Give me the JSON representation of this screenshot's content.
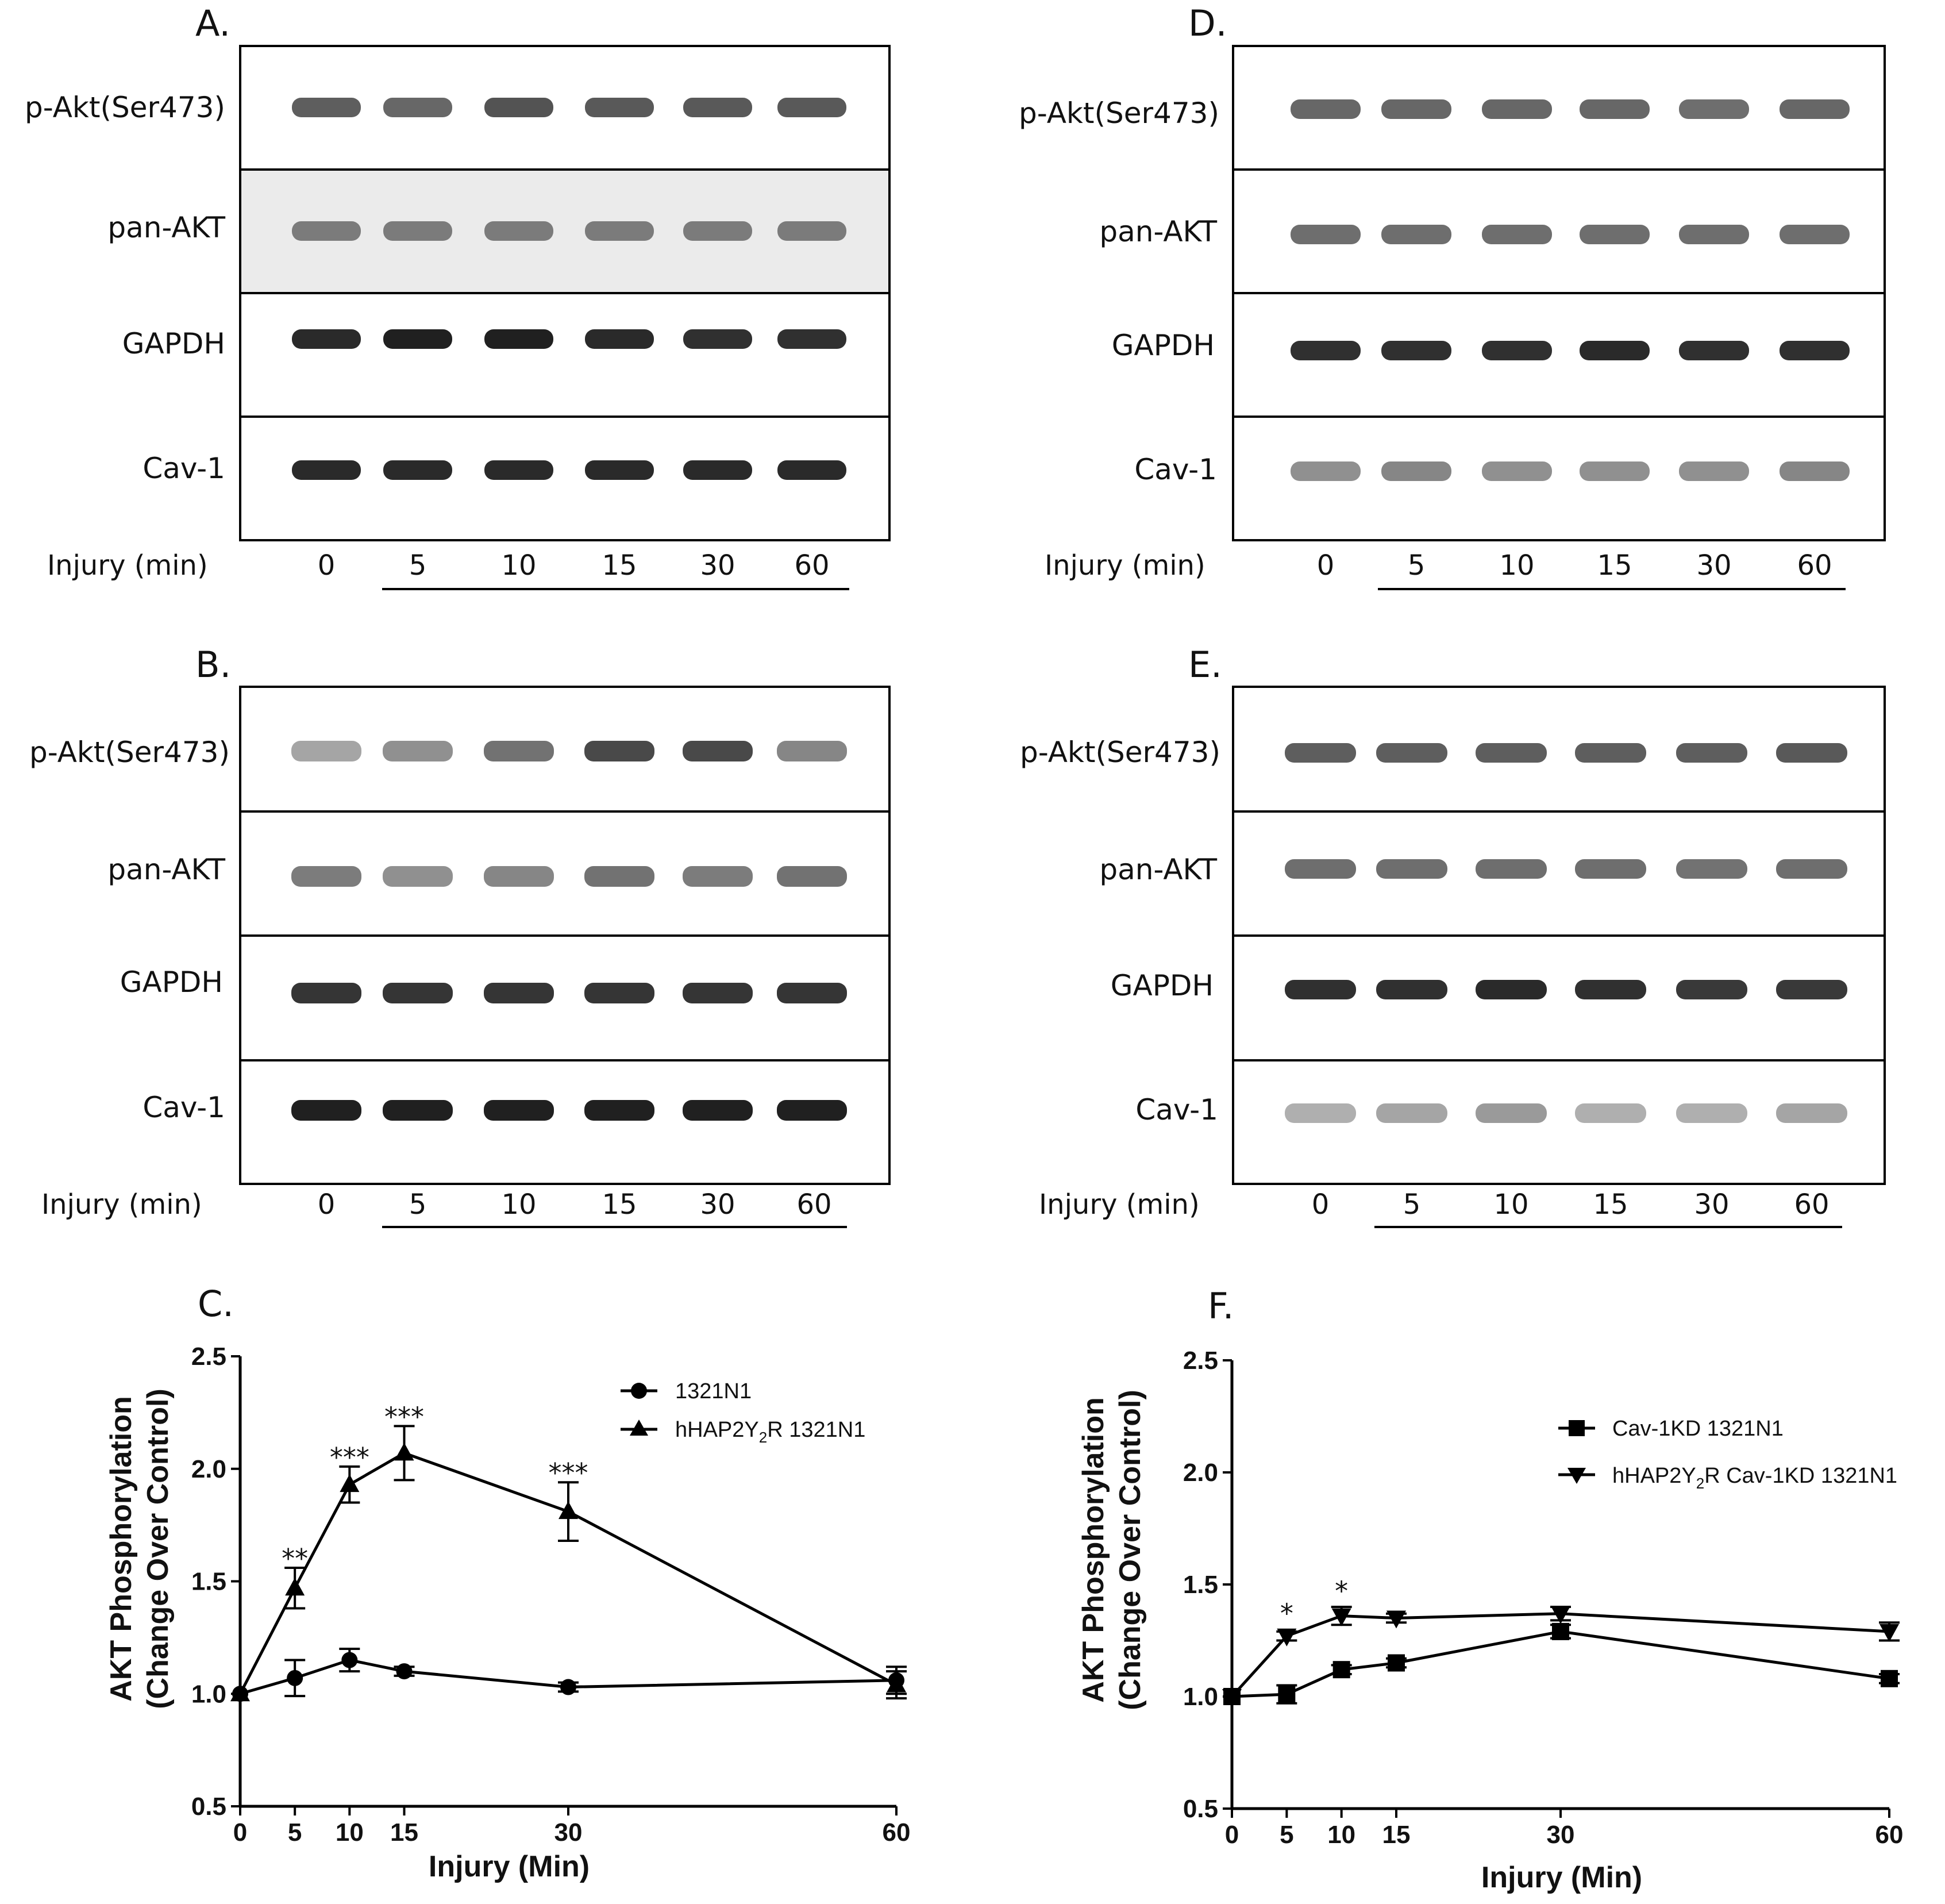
{
  "blots": [
    {
      "letter": "A.",
      "rows": [
        {
          "label": "p-Akt(Ser473)",
          "intensity": [
            0.7,
            0.65,
            0.75,
            0.72,
            0.72,
            0.72
          ]
        },
        {
          "label": "pan-AKT",
          "intensity": [
            0.55,
            0.55,
            0.55,
            0.55,
            0.55,
            0.55
          ]
        },
        {
          "label": "GAPDH",
          "intensity": [
            0.95,
            1.0,
            1.0,
            0.95,
            0.92,
            0.92
          ]
        },
        {
          "label": "Cav-1",
          "intensity": [
            0.95,
            0.95,
            0.95,
            0.95,
            0.95,
            0.95
          ]
        }
      ],
      "injury_label": "Injury (min)",
      "lanes": [
        "0",
        "5",
        "10",
        "15",
        "30",
        "60"
      ]
    },
    {
      "letter": "B.",
      "rows": [
        {
          "label": "p-Akt(Ser473)",
          "intensity": [
            0.35,
            0.45,
            0.6,
            0.8,
            0.8,
            0.5
          ]
        },
        {
          "label": "pan-AKT",
          "intensity": [
            0.55,
            0.45,
            0.5,
            0.6,
            0.55,
            0.6
          ]
        },
        {
          "label": "GAPDH",
          "intensity": [
            0.9,
            0.9,
            0.9,
            0.9,
            0.9,
            0.9
          ]
        },
        {
          "label": "Cav-1",
          "intensity": [
            1.0,
            1.0,
            1.0,
            1.0,
            1.0,
            1.0
          ]
        }
      ],
      "injury_label": "Injury (min)",
      "lanes": [
        "0",
        "5",
        "10",
        "15",
        "30",
        "60"
      ]
    },
    {
      "letter": "D.",
      "rows": [
        {
          "label": "p-Akt(Ser473)",
          "intensity": [
            0.65,
            0.65,
            0.65,
            0.65,
            0.62,
            0.65
          ]
        },
        {
          "label": "pan-AKT",
          "intensity": [
            0.62,
            0.62,
            0.62,
            0.62,
            0.62,
            0.62
          ]
        },
        {
          "label": "GAPDH",
          "intensity": [
            0.92,
            0.92,
            0.92,
            0.95,
            0.92,
            0.92
          ]
        },
        {
          "label": "Cav-1",
          "intensity": [
            0.45,
            0.5,
            0.45,
            0.45,
            0.45,
            0.5
          ]
        }
      ],
      "injury_label": "Injury (min)",
      "lanes": [
        "0",
        "5",
        "10",
        "15",
        "30",
        "60"
      ]
    },
    {
      "letter": "E.",
      "rows": [
        {
          "label": "p-Akt(Ser473)",
          "intensity": [
            0.7,
            0.7,
            0.7,
            0.7,
            0.7,
            0.72
          ]
        },
        {
          "label": "pan-AKT",
          "intensity": [
            0.62,
            0.62,
            0.62,
            0.62,
            0.6,
            0.62
          ]
        },
        {
          "label": "GAPDH",
          "intensity": [
            0.92,
            0.92,
            0.95,
            0.92,
            0.88,
            0.88
          ]
        },
        {
          "label": "Cav-1",
          "intensity": [
            0.3,
            0.35,
            0.4,
            0.3,
            0.3,
            0.35
          ]
        }
      ],
      "injury_label": "Injury (min)",
      "lanes": [
        "0",
        "5",
        "10",
        "15",
        "30",
        "60"
      ]
    }
  ],
  "chart_data": [
    {
      "panel": "C.",
      "type": "line",
      "title": "",
      "xlabel": "Injury (Min)",
      "ylabel_line1": "AKT Phosphorylation",
      "ylabel_line2": "(Change Over Control)",
      "xlim": [
        0,
        60
      ],
      "ylim": [
        0.5,
        2.5
      ],
      "xticks": [
        0,
        5,
        10,
        15,
        30,
        60
      ],
      "yticks": [
        0.5,
        1.0,
        1.5,
        2.0,
        2.5
      ],
      "ytick_labels": [
        "0.5",
        "1.0",
        "1.5",
        "2.0",
        "2.5"
      ],
      "series": [
        {
          "name": "1321N1",
          "marker": "circle",
          "x": [
            0,
            5,
            10,
            15,
            30,
            60
          ],
          "y": [
            1.0,
            1.07,
            1.15,
            1.1,
            1.03,
            1.06
          ],
          "err": [
            0,
            0.08,
            0.05,
            0.02,
            0.02,
            0.06
          ]
        },
        {
          "name": "hHAP2Y2R 1321N1",
          "marker": "triangle-up",
          "x": [
            0,
            5,
            10,
            15,
            30,
            60
          ],
          "y": [
            1.0,
            1.47,
            1.93,
            2.07,
            1.81,
            1.04
          ],
          "err": [
            0,
            0.09,
            0.08,
            0.12,
            0.13,
            0.06
          ]
        }
      ],
      "legend": [
        "1321N1",
        "hHAP2Y",
        "2",
        "R 1321N1"
      ],
      "annotations": [
        {
          "x": 5,
          "y": 1.56,
          "text": "**"
        },
        {
          "x": 10,
          "y": 2.01,
          "text": "***"
        },
        {
          "x": 15,
          "y": 2.19,
          "text": "***"
        },
        {
          "x": 30,
          "y": 1.94,
          "text": "***"
        }
      ]
    },
    {
      "panel": "F.",
      "type": "line",
      "title": "",
      "xlabel": "Injury (Min)",
      "ylabel_line1": "AKT Phosphorylation",
      "ylabel_line2": "(Change Over Control)",
      "xlim": [
        0,
        60
      ],
      "ylim": [
        0.5,
        2.5
      ],
      "xticks": [
        0,
        5,
        10,
        15,
        30,
        60
      ],
      "yticks": [
        0.5,
        1.0,
        1.5,
        2.0,
        2.5
      ],
      "ytick_labels": [
        "0.5",
        "1.0",
        "1.5",
        "2.0",
        "2.5"
      ],
      "series": [
        {
          "name": "Cav-1KD 1321N1",
          "marker": "square",
          "x": [
            0,
            5,
            10,
            15,
            30,
            60
          ],
          "y": [
            1.0,
            1.01,
            1.12,
            1.15,
            1.29,
            1.08
          ],
          "err": [
            0,
            0.04,
            0.02,
            0.02,
            0.03,
            0.02
          ]
        },
        {
          "name": "hHAP2Y2R Cav-1KD 1321N1",
          "marker": "triangle-down",
          "x": [
            0,
            5,
            10,
            15,
            30,
            60
          ],
          "y": [
            1.0,
            1.27,
            1.36,
            1.35,
            1.37,
            1.29
          ],
          "err": [
            0,
            0.02,
            0.04,
            0.02,
            0.03,
            0.04
          ]
        }
      ],
      "legend": [
        "Cav-1KD 1321N1",
        "hHAP2Y",
        "2",
        "R Cav-1KD 1321N1"
      ],
      "annotations": [
        {
          "x": 5,
          "y": 1.33,
          "text": "*"
        },
        {
          "x": 10,
          "y": 1.43,
          "text": "*"
        }
      ]
    }
  ]
}
